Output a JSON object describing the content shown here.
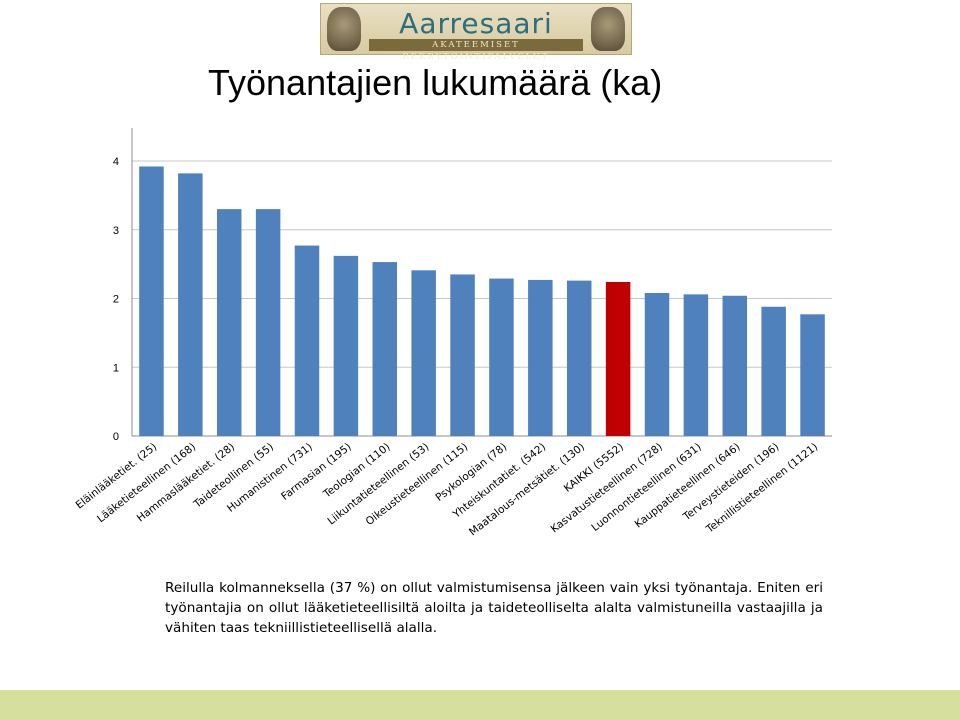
{
  "logo": {
    "name": "Aarresaari",
    "tagline": "AKATEEMISET REKRYTOINTIPALVELUT"
  },
  "title": "Työnantajien lukumäärä (ka)",
  "chart_data": {
    "type": "bar",
    "title": "Työnantajien lukumäärä (ka)",
    "xlabel": "",
    "ylabel": "",
    "ylim": [
      0,
      4
    ],
    "yticks": [
      0,
      1,
      2,
      3,
      4
    ],
    "grid": true,
    "legend": "none",
    "categories": [
      "Eläinlääketiet. (25)",
      "Lääketieteellinen (168)",
      "Hammaslääketiet. (28)",
      "Taideteollinen (55)",
      "Humanistinen (731)",
      "Farmasian (195)",
      "Teologian (110)",
      "Liikuntatieteellinen (53)",
      "Oikeustieteellinen (115)",
      "Psykologian (78)",
      "Yhteiskuntatiet. (542)",
      "Maatalous-metsätiet. (130)",
      "KAIKKI (5552)",
      "Kasvatustieteellinen (728)",
      "Luonnontieteellinen (631)",
      "Kauppatieteellinen (646)",
      "Terveystieteiden (196)",
      "Teknillistieteellinen (1121)"
    ],
    "values": [
      3.92,
      3.82,
      3.3,
      3.3,
      2.77,
      2.62,
      2.53,
      2.41,
      2.35,
      2.29,
      2.27,
      2.26,
      2.24,
      2.08,
      2.06,
      2.04,
      1.88,
      1.77
    ],
    "colors": {
      "bar": "#4f81bd",
      "highlight": "#c00000",
      "highlight_index": 12,
      "grid": "#c8c8c8"
    }
  },
  "caption": "Reilulla kolmanneksella (37 %) on ollut valmistumisensa jälkeen vain yksi työnantaja. Eniten eri työnantajia on ollut lääketieteellisiltä aloilta ja taideteolliselta alalta valmistuneilla vastaajilla ja vähiten taas tekniillistieteellisellä alalla."
}
